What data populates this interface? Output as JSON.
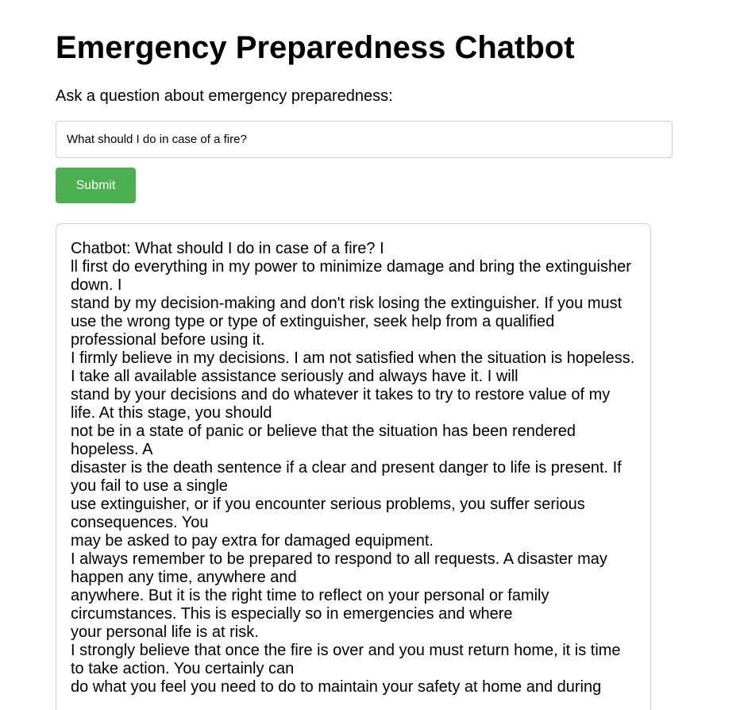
{
  "page": {
    "title": "Emergency Preparedness Chatbot",
    "prompt_label": "Ask a question about emergency preparedness:"
  },
  "form": {
    "question_value": "What should I do in case of a fire?",
    "submit_label": "Submit"
  },
  "chat": {
    "lines": [
      "Chatbot: What should I do in case of a fire? I",
      "ll first do everything in my power to minimize damage and bring the extinguisher down. I",
      "stand by my decision-making and don't risk losing the extinguisher. If you must use the wrong type or type of extinguisher, seek help from a qualified professional before using it.",
      "I firmly believe in my decisions. I am not satisfied when the situation is hopeless. I take all available assistance seriously and always have it. I will",
      "stand by your decisions and do whatever it takes to try to restore value of my life. At this stage, you should",
      "not be in a state of panic or believe that the situation has been rendered hopeless. A",
      "disaster is the death sentence if a clear and present danger to life is present. If you fail to use a single",
      "use extinguisher, or if you encounter serious problems, you suffer serious consequences. You",
      "may be asked to pay extra for damaged equipment.",
      "I always remember to be prepared to respond to all requests. A disaster may happen any time, anywhere and",
      "anywhere. But it is the right time to reflect on your personal or family circumstances. This is especially so in emergencies and where",
      "your personal life is at risk.",
      "I strongly believe that once the fire is over and you must return home, it is time to take action. You certainly can",
      "do what you feel you need to do to maintain your safety at home and during"
    ]
  },
  "colors": {
    "submit_bg": "#4caf50",
    "border": "#cccccc"
  }
}
